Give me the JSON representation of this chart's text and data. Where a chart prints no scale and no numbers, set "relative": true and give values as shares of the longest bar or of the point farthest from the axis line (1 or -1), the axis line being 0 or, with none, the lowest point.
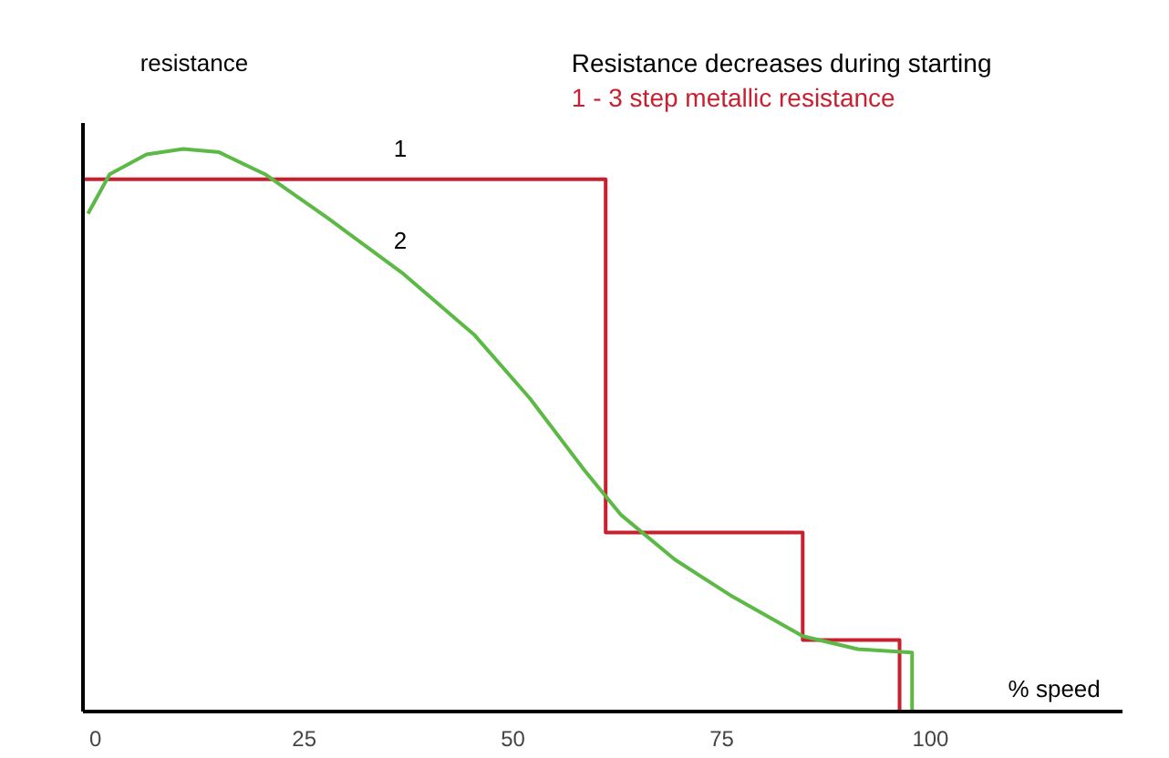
{
  "chart_data": {
    "type": "line",
    "title": "Resistance decreases during starting",
    "ylabel": "resistance",
    "xlabel": "% speed",
    "relative": true,
    "xlim": [
      -1.5,
      123
    ],
    "xticks": [
      0,
      25,
      50,
      75,
      100
    ],
    "grid": false,
    "marker": "none",
    "line_style": "solid",
    "series": [
      {
        "name": "1 - 3 step metallic resistance",
        "color": "#c8202f",
        "x": [
          -1.5,
          61.1,
          61.1,
          84.7,
          84.7,
          96.3,
          96.3
        ],
        "values": [
          0.946,
          0.946,
          0.318,
          0.318,
          0.127,
          0.127,
          0
        ]
      },
      {
        "color": "#5cb946",
        "x": [
          -0.9,
          1.7,
          6.1,
          10.5,
          14.8,
          20.3,
          27.9,
          36.7,
          45.4,
          52,
          58.5,
          62.9,
          69.4,
          76,
          84.7,
          91.3,
          97.8,
          97.8
        ],
        "values": [
          0.885,
          0.955,
          0.99,
          1.0,
          0.994,
          0.955,
          0.876,
          0.78,
          0.669,
          0.557,
          0.43,
          0.35,
          0.27,
          0.207,
          0.134,
          0.111,
          0.105,
          0
        ]
      }
    ],
    "annotations": [
      "1",
      "2"
    ]
  }
}
